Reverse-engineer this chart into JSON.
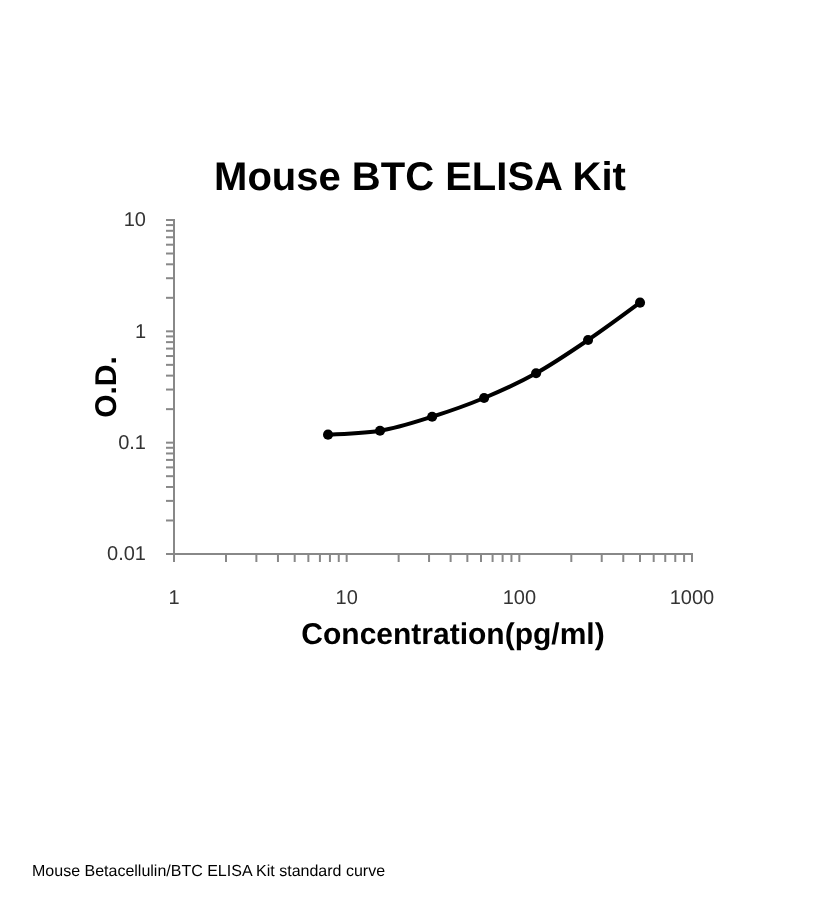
{
  "chart_data": {
    "type": "line",
    "title": "Mouse BTC ELISA Kit",
    "xlabel": "Concentration(pg/ml)",
    "ylabel": "O.D.",
    "x": [
      7.8,
      15.6,
      31.25,
      62.5,
      125,
      250,
      500
    ],
    "series": [
      {
        "color": "#000000",
        "values": [
          0.118,
          0.128,
          0.171,
          0.252,
          0.42,
          0.835,
          1.81
        ]
      }
    ],
    "log": "xy",
    "marker": "circle",
    "line_style": "solid",
    "grid": false,
    "xlim": [
      1,
      1000
    ],
    "ylim": [
      0.01,
      10
    ],
    "xticks": [
      1,
      {
        "value": 2,
        "label": null
      },
      {
        "value": 3,
        "label": null
      },
      {
        "value": 4,
        "label": null
      },
      {
        "value": 5,
        "label": null
      },
      {
        "value": 6,
        "label": null
      },
      {
        "value": 7,
        "label": null
      },
      {
        "value": 8,
        "label": null
      },
      {
        "value": 9,
        "label": null
      },
      10,
      {
        "value": 20,
        "label": null
      },
      {
        "value": 30,
        "label": null
      },
      {
        "value": 40,
        "label": null
      },
      {
        "value": 50,
        "label": null
      },
      {
        "value": 60,
        "label": null
      },
      {
        "value": 70,
        "label": null
      },
      {
        "value": 80,
        "label": null
      },
      {
        "value": 90,
        "label": null
      },
      100,
      {
        "value": 200,
        "label": null
      },
      {
        "value": 300,
        "label": null
      },
      {
        "value": 400,
        "label": null
      },
      {
        "value": 500,
        "label": null
      },
      {
        "value": 600,
        "label": null
      },
      {
        "value": 700,
        "label": null
      },
      {
        "value": 800,
        "label": null
      },
      {
        "value": 900,
        "label": null
      },
      1000
    ],
    "yticks": [
      {
        "value": 0.01,
        "label": "0.01"
      },
      {
        "value": 0.02,
        "label": null
      },
      {
        "value": 0.03,
        "label": null
      },
      {
        "value": 0.04,
        "label": null
      },
      {
        "value": 0.05,
        "label": null
      },
      {
        "value": 0.06,
        "label": null
      },
      {
        "value": 0.07,
        "label": null
      },
      {
        "value": 0.08,
        "label": null
      },
      {
        "value": 0.09,
        "label": null
      },
      {
        "value": 0.1,
        "label": "0.1"
      },
      {
        "value": 0.2,
        "label": null
      },
      {
        "value": 0.3,
        "label": null
      },
      {
        "value": 0.4,
        "label": null
      },
      {
        "value": 0.5,
        "label": null
      },
      {
        "value": 0.6,
        "label": null
      },
      {
        "value": 0.7,
        "label": null
      },
      {
        "value": 0.8,
        "label": null
      },
      {
        "value": 0.9,
        "label": null
      },
      1,
      {
        "value": 2,
        "label": null
      },
      {
        "value": 3,
        "label": null
      },
      {
        "value": 4,
        "label": null
      },
      {
        "value": 5,
        "label": null
      },
      {
        "value": 6,
        "label": null
      },
      {
        "value": 7,
        "label": null
      },
      {
        "value": 8,
        "label": null
      },
      {
        "value": 9,
        "label": null
      },
      10
    ],
    "annotations": [
      "Mouse Betacellulin/BTC ELISA Kit standard curve"
    ]
  }
}
